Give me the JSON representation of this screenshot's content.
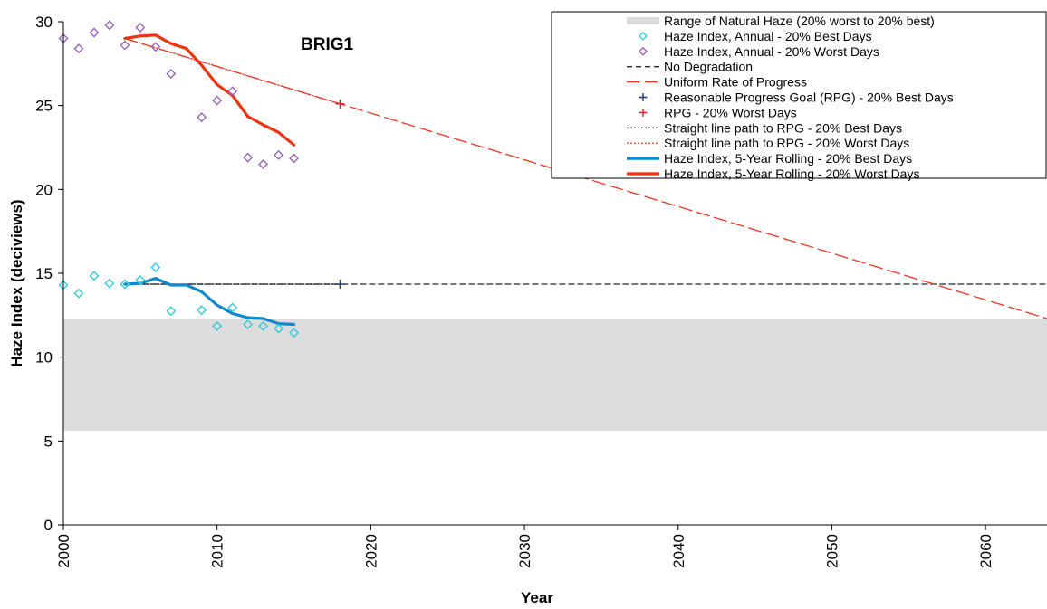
{
  "chart_data": {
    "type": "line",
    "title": "BRIG1",
    "xlabel": "Year",
    "ylabel": "Haze Index (deciviews)",
    "xlim": [
      2000,
      2064
    ],
    "ylim": [
      0,
      30
    ],
    "x_ticks": [
      2000,
      2010,
      2020,
      2030,
      2040,
      2050,
      2060
    ],
    "y_ticks": [
      0,
      5,
      10,
      15,
      20,
      25,
      30
    ],
    "grid": false,
    "legend_position": "top-right",
    "series": [
      {
        "name": "Range of Natural Haze (20% worst to 20% best)",
        "kind": "band",
        "color": "#dcdcdc",
        "y_low": 5.6,
        "y_high": 12.3
      },
      {
        "name": "Haze Index, Annual - 20% Best Days",
        "kind": "markers",
        "marker": "diamond",
        "color": "#33ccdd",
        "x": [
          2000,
          2001,
          2002,
          2003,
          2004,
          2005,
          2006,
          2007,
          2009,
          2010,
          2011,
          2012,
          2013,
          2014,
          2015
        ],
        "y": [
          14.3,
          13.8,
          14.85,
          14.4,
          14.35,
          14.6,
          15.35,
          12.75,
          12.8,
          11.85,
          12.95,
          11.95,
          11.85,
          11.7,
          11.45
        ]
      },
      {
        "name": "Haze Index, Annual - 20% Worst Days",
        "kind": "markers",
        "marker": "diamond",
        "color": "#9966bb",
        "x": [
          2000,
          2001,
          2002,
          2003,
          2004,
          2005,
          2006,
          2007,
          2009,
          2010,
          2011,
          2012,
          2013,
          2014,
          2015
        ],
        "y": [
          29.0,
          28.4,
          29.35,
          29.8,
          28.6,
          29.65,
          28.5,
          26.9,
          24.3,
          25.3,
          25.85,
          21.9,
          21.5,
          22.05,
          21.85
        ]
      },
      {
        "name": "No Degradation",
        "kind": "line",
        "dash": "6,4",
        "color": "#1a2a3a",
        "width": 1.3,
        "x": [
          2004,
          2064
        ],
        "y": [
          14.35,
          14.35
        ]
      },
      {
        "name": "Uniform Rate of Progress",
        "kind": "line",
        "dash": "14,6",
        "color": "#ee3322",
        "width": 1.3,
        "x": [
          2004,
          2064
        ],
        "y": [
          29.0,
          12.3
        ]
      },
      {
        "name": "Reasonable Progress Goal (RPG) - 20% Best Days",
        "kind": "markers",
        "marker": "plus",
        "color": "#1a3a7a",
        "x": [
          2018
        ],
        "y": [
          14.35
        ]
      },
      {
        "name": "RPG - 20% Worst Days",
        "kind": "markers",
        "marker": "plus",
        "color": "#cc2222",
        "x": [
          2018
        ],
        "y": [
          25.1
        ]
      },
      {
        "name": "Straight line path to RPG - 20% Best Days",
        "kind": "line",
        "dash": "2,2",
        "color": "#111111",
        "width": 1.2,
        "x": [
          2004,
          2018
        ],
        "y": [
          14.35,
          14.35
        ]
      },
      {
        "name": "Straight line path to RPG - 20% Worst Days",
        "kind": "line",
        "dash": "2,2",
        "color": "#ee3322",
        "width": 1.2,
        "x": [
          2004,
          2018
        ],
        "y": [
          29.0,
          25.1
        ]
      },
      {
        "name": "Haze Index, 5-Year Rolling - 20% Best Days",
        "kind": "line",
        "color": "#1188cc",
        "width": 3.2,
        "x": [
          2004,
          2005,
          2006,
          2007,
          2008,
          2009,
          2010,
          2011,
          2012,
          2013,
          2014,
          2015
        ],
        "y": [
          14.35,
          14.4,
          14.7,
          14.3,
          14.3,
          13.9,
          13.1,
          12.6,
          12.35,
          12.3,
          12.0,
          11.95
        ]
      },
      {
        "name": "Haze Index, 5-Year Rolling - 20% Worst Days",
        "kind": "line",
        "color": "#ee3311",
        "width": 3.2,
        "x": [
          2004,
          2005,
          2006,
          2007,
          2008,
          2009,
          2010,
          2011,
          2012,
          2013,
          2014,
          2015
        ],
        "y": [
          29.0,
          29.15,
          29.2,
          28.7,
          28.4,
          27.4,
          26.25,
          25.6,
          24.35,
          23.85,
          23.4,
          22.65
        ]
      }
    ]
  }
}
